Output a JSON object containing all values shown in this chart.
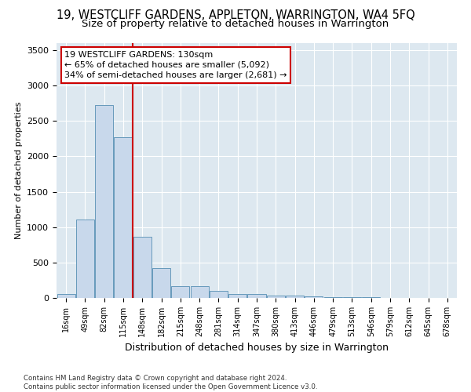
{
  "title": "19, WESTCLIFF GARDENS, APPLETON, WARRINGTON, WA4 5FQ",
  "subtitle": "Size of property relative to detached houses in Warrington",
  "xlabel": "Distribution of detached houses by size in Warrington",
  "ylabel": "Number of detached properties",
  "bar_labels": [
    "16sqm",
    "49sqm",
    "82sqm",
    "115sqm",
    "148sqm",
    "182sqm",
    "215sqm",
    "248sqm",
    "281sqm",
    "314sqm",
    "347sqm",
    "380sqm",
    "413sqm",
    "446sqm",
    "479sqm",
    "513sqm",
    "546sqm",
    "579sqm",
    "612sqm",
    "645sqm",
    "678sqm"
  ],
  "bar_values": [
    50,
    1110,
    2720,
    2270,
    865,
    425,
    170,
    165,
    95,
    60,
    55,
    35,
    30,
    25,
    15,
    10,
    8,
    5,
    3,
    2,
    1
  ],
  "bar_color": "#c8d8eb",
  "bar_edge_color": "#6699bb",
  "vline_color": "#cc0000",
  "annotation_text": "19 WESTCLIFF GARDENS: 130sqm\n← 65% of detached houses are smaller (5,092)\n34% of semi-detached houses are larger (2,681) →",
  "annotation_box_color": "#ffffff",
  "annotation_box_edge": "#cc0000",
  "ylim": [
    0,
    3600
  ],
  "yticks": [
    0,
    500,
    1000,
    1500,
    2000,
    2500,
    3000,
    3500
  ],
  "footnote": "Contains HM Land Registry data © Crown copyright and database right 2024.\nContains public sector information licensed under the Open Government Licence v3.0.",
  "bg_color": "#dde8f0",
  "title_fontsize": 10.5,
  "subtitle_fontsize": 9.5,
  "xlabel_fontsize": 9,
  "ylabel_fontsize": 8
}
